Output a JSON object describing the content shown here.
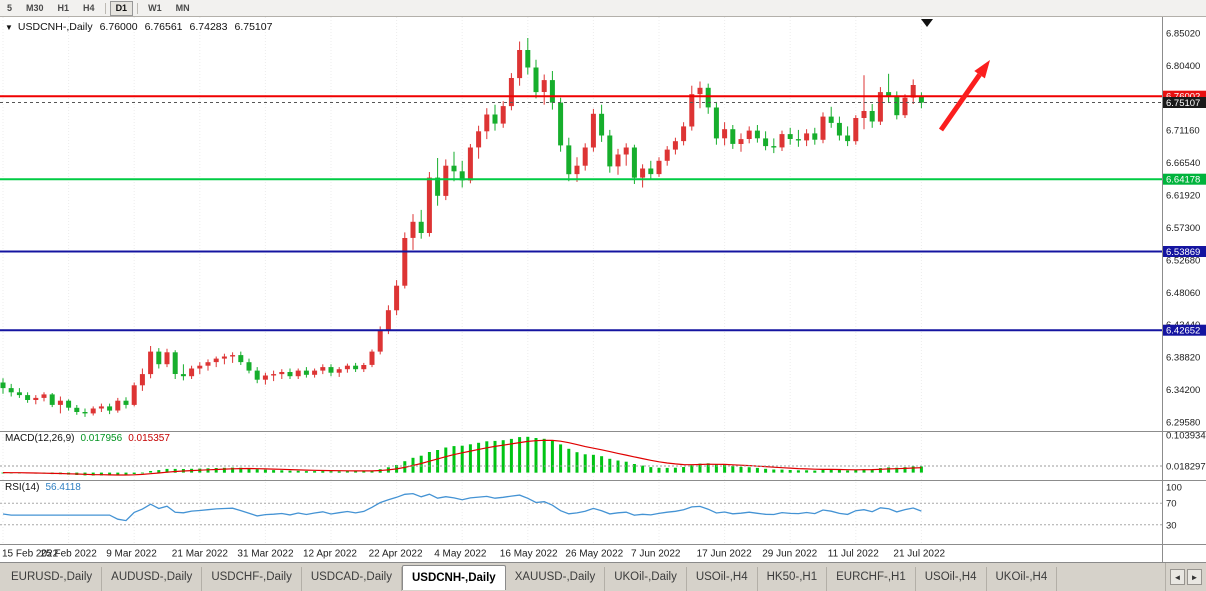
{
  "toolbar": {
    "timeframes": [
      "5",
      "M30",
      "H1",
      "H4",
      "D1",
      "W1",
      "MN"
    ],
    "active": "D1",
    "separators_after": [
      "H4",
      "D1"
    ]
  },
  "chart": {
    "header": {
      "symbol": "USDCNH-,Daily",
      "open": "6.76000",
      "high": "6.76561",
      "low": "6.74283",
      "close": "6.75107"
    },
    "price_axis_labels": [
      "6.85020",
      "6.80400",
      "6.75780",
      "6.71160",
      "6.66540",
      "6.61920",
      "6.57300",
      "6.52680",
      "6.48060",
      "6.43440",
      "6.38820",
      "6.34200",
      "6.29580"
    ],
    "badges": [
      {
        "value": "6.76002",
        "price": 6.76002,
        "color": "#e81010",
        "line_color": "#f00000",
        "line_width": 2,
        "dashed": false
      },
      {
        "value": "6.75107",
        "price": 6.75107,
        "color": "#1a1a1a",
        "line_color": "#555555",
        "line_width": 1,
        "dashed": true
      },
      {
        "value": "6.64178",
        "price": 6.64178,
        "color": "#00b33c",
        "line_color": "#00cc44",
        "line_width": 2,
        "dashed": false
      },
      {
        "value": "6.53869",
        "price": 6.53869,
        "color": "#1414a0",
        "line_color": "#1414a0",
        "line_width": 2,
        "dashed": false
      },
      {
        "value": "6.42652",
        "price": 6.42652,
        "color": "#1414a0",
        "line_color": "#1414a0",
        "line_width": 2,
        "dashed": false
      }
    ],
    "dates": [
      "15 Feb 2022",
      "25 Feb 2022",
      "9 Mar 2022",
      "21 Mar 2022",
      "31 Mar 2022",
      "12 Apr 2022",
      "22 Apr 2022",
      "4 May 2022",
      "16 May 2022",
      "26 May 2022",
      "7 Jun 2022",
      "17 Jun 2022",
      "29 Jun 2022",
      "11 Jul 2022",
      "21 Jul 2022"
    ],
    "macd": {
      "label": "MACD(12,26,9)",
      "value1": "0.017956",
      "value2": "0.015357",
      "axis_top": "0.103934",
      "axis_bottom": "0.018297",
      "fast": 12,
      "slow": 26,
      "signal": 9
    },
    "rsi": {
      "label": "RSI(14)",
      "value": "56.4118",
      "axis": [
        "100",
        "70",
        "30"
      ],
      "levels": [
        70,
        30
      ],
      "period": 14
    }
  },
  "colors": {
    "bull": "#dd3434",
    "bear": "#16ae2c",
    "macd_hist": "#00c414",
    "macd_signal": "#e00000",
    "rsi_line": "#4493d4",
    "arrow": "#fb1e1e",
    "marker": "#111111"
  },
  "chart_data": {
    "type": "candlestick",
    "symbol": "USDCNH",
    "timeframe": "Daily",
    "ylim": [
      6.2843,
      6.8687
    ],
    "date_tick_indices": [
      0,
      8,
      16,
      24,
      32,
      40,
      48,
      56,
      64,
      72,
      80,
      88,
      96,
      104,
      112
    ],
    "annotations": [
      {
        "type": "arrow-up-right",
        "color": "#fb1e1e",
        "meaning": "bullish continuation annotation"
      },
      {
        "type": "triangle-down-marker",
        "color": "#111111"
      }
    ],
    "candles": [
      [
        6.352,
        6.358,
        6.336,
        6.344
      ],
      [
        6.344,
        6.35,
        6.332,
        6.338
      ],
      [
        6.338,
        6.344,
        6.33,
        6.334
      ],
      [
        6.334,
        6.338,
        6.323,
        6.327
      ],
      [
        6.327,
        6.334,
        6.321,
        6.33
      ],
      [
        6.33,
        6.338,
        6.325,
        6.335
      ],
      [
        6.335,
        6.337,
        6.317,
        6.32
      ],
      [
        6.32,
        6.332,
        6.308,
        6.326
      ],
      [
        6.326,
        6.328,
        6.312,
        6.316
      ],
      [
        6.316,
        6.32,
        6.306,
        6.31
      ],
      [
        6.31,
        6.315,
        6.303,
        6.308
      ],
      [
        6.308,
        6.318,
        6.305,
        6.315
      ],
      [
        6.315,
        6.322,
        6.31,
        6.318
      ],
      [
        6.318,
        6.322,
        6.307,
        6.312
      ],
      [
        6.312,
        6.33,
        6.309,
        6.326
      ],
      [
        6.326,
        6.331,
        6.315,
        6.32
      ],
      [
        6.32,
        6.352,
        6.318,
        6.348
      ],
      [
        6.348,
        6.372,
        6.34,
        6.364
      ],
      [
        6.364,
        6.404,
        6.358,
        6.396
      ],
      [
        6.396,
        6.401,
        6.372,
        6.378
      ],
      [
        6.378,
        6.4,
        6.374,
        6.395
      ],
      [
        6.395,
        6.398,
        6.357,
        6.364
      ],
      [
        6.364,
        6.378,
        6.355,
        6.361
      ],
      [
        6.361,
        6.376,
        6.357,
        6.372
      ],
      [
        6.372,
        6.381,
        6.364,
        6.376
      ],
      [
        6.376,
        6.385,
        6.369,
        6.381
      ],
      [
        6.381,
        6.389,
        6.374,
        6.386
      ],
      [
        6.386,
        6.393,
        6.378,
        6.389
      ],
      [
        6.389,
        6.395,
        6.38,
        6.391
      ],
      [
        6.391,
        6.396,
        6.377,
        6.381
      ],
      [
        6.381,
        6.386,
        6.365,
        6.369
      ],
      [
        6.369,
        6.374,
        6.351,
        6.356
      ],
      [
        6.356,
        6.366,
        6.349,
        6.362
      ],
      [
        6.362,
        6.369,
        6.354,
        6.364
      ],
      [
        6.364,
        6.371,
        6.357,
        6.367
      ],
      [
        6.367,
        6.372,
        6.357,
        6.361
      ],
      [
        6.361,
        6.372,
        6.357,
        6.369
      ],
      [
        6.369,
        6.374,
        6.359,
        6.363
      ],
      [
        6.363,
        6.372,
        6.359,
        6.369
      ],
      [
        6.369,
        6.378,
        6.364,
        6.374
      ],
      [
        6.374,
        6.378,
        6.361,
        6.366
      ],
      [
        6.366,
        6.374,
        6.36,
        6.371
      ],
      [
        6.371,
        6.379,
        6.366,
        6.376
      ],
      [
        6.376,
        6.38,
        6.367,
        6.371
      ],
      [
        6.371,
        6.38,
        6.367,
        6.377
      ],
      [
        6.377,
        6.399,
        6.374,
        6.396
      ],
      [
        6.396,
        6.432,
        6.392,
        6.427
      ],
      [
        6.427,
        6.462,
        6.421,
        6.455
      ],
      [
        6.455,
        6.498,
        6.448,
        6.49
      ],
      [
        6.49,
        6.566,
        6.486,
        6.558
      ],
      [
        6.558,
        6.592,
        6.541,
        6.581
      ],
      [
        6.581,
        6.598,
        6.557,
        6.565
      ],
      [
        6.565,
        6.652,
        6.56,
        6.644
      ],
      [
        6.644,
        6.672,
        6.604,
        6.618
      ],
      [
        6.618,
        6.67,
        6.612,
        6.661
      ],
      [
        6.661,
        6.681,
        6.639,
        6.653
      ],
      [
        6.653,
        6.668,
        6.63,
        6.64
      ],
      [
        6.64,
        6.692,
        6.636,
        6.687
      ],
      [
        6.687,
        6.718,
        6.671,
        6.71
      ],
      [
        6.71,
        6.743,
        6.699,
        6.734
      ],
      [
        6.734,
        6.748,
        6.711,
        6.721
      ],
      [
        6.721,
        6.753,
        6.715,
        6.746
      ],
      [
        6.746,
        6.793,
        6.74,
        6.786
      ],
      [
        6.786,
        6.838,
        6.775,
        6.826
      ],
      [
        6.826,
        6.843,
        6.791,
        6.801
      ],
      [
        6.801,
        6.812,
        6.757,
        6.766
      ],
      [
        6.766,
        6.791,
        6.748,
        6.783
      ],
      [
        6.783,
        6.796,
        6.741,
        6.751
      ],
      [
        6.751,
        6.758,
        6.681,
        6.69
      ],
      [
        6.69,
        6.701,
        6.639,
        6.649
      ],
      [
        6.649,
        6.673,
        6.638,
        6.661
      ],
      [
        6.661,
        6.693,
        6.654,
        6.687
      ],
      [
        6.687,
        6.742,
        6.681,
        6.735
      ],
      [
        6.735,
        6.748,
        6.695,
        6.704
      ],
      [
        6.704,
        6.712,
        6.651,
        6.66
      ],
      [
        6.66,
        6.685,
        6.648,
        6.677
      ],
      [
        6.677,
        6.693,
        6.661,
        6.687
      ],
      [
        6.687,
        6.691,
        6.635,
        6.644
      ],
      [
        6.644,
        6.663,
        6.63,
        6.657
      ],
      [
        6.657,
        6.668,
        6.641,
        6.649
      ],
      [
        6.649,
        6.673,
        6.645,
        6.668
      ],
      [
        6.668,
        6.689,
        6.661,
        6.684
      ],
      [
        6.684,
        6.701,
        6.677,
        6.696
      ],
      [
        6.696,
        6.723,
        6.69,
        6.717
      ],
      [
        6.717,
        6.775,
        6.711,
        6.763
      ],
      [
        6.763,
        6.781,
        6.743,
        6.772
      ],
      [
        6.772,
        6.778,
        6.735,
        6.744
      ],
      [
        6.744,
        6.752,
        6.691,
        6.7
      ],
      [
        6.7,
        6.723,
        6.69,
        6.713
      ],
      [
        6.713,
        6.719,
        6.685,
        6.692
      ],
      [
        6.692,
        6.707,
        6.681,
        6.699
      ],
      [
        6.699,
        6.717,
        6.693,
        6.711
      ],
      [
        6.711,
        6.719,
        6.694,
        6.7
      ],
      [
        6.7,
        6.71,
        6.683,
        6.689
      ],
      [
        6.689,
        6.7,
        6.679,
        6.687
      ],
      [
        6.687,
        6.711,
        6.682,
        6.706
      ],
      [
        6.706,
        6.715,
        6.691,
        6.699
      ],
      [
        6.699,
        6.712,
        6.688,
        6.697
      ],
      [
        6.697,
        6.713,
        6.689,
        6.707
      ],
      [
        6.707,
        6.715,
        6.691,
        6.698
      ],
      [
        6.698,
        6.737,
        6.693,
        6.731
      ],
      [
        6.731,
        6.745,
        6.715,
        6.722
      ],
      [
        6.722,
        6.731,
        6.697,
        6.704
      ],
      [
        6.704,
        6.717,
        6.689,
        6.696
      ],
      [
        6.696,
        6.733,
        6.691,
        6.729
      ],
      [
        6.729,
        6.79,
        6.713,
        6.739
      ],
      [
        6.739,
        6.749,
        6.715,
        6.724
      ],
      [
        6.724,
        6.773,
        6.719,
        6.766
      ],
      [
        6.766,
        6.792,
        6.751,
        6.759
      ],
      [
        6.759,
        6.767,
        6.727,
        6.733
      ],
      [
        6.733,
        6.763,
        6.729,
        6.758
      ],
      [
        6.758,
        6.784,
        6.749,
        6.776
      ],
      [
        6.76,
        6.76561,
        6.74283,
        6.75107
      ]
    ]
  },
  "bottom_tabs": {
    "items": [
      "EURUSD-,Daily",
      "AUDUSD-,Daily",
      "USDCHF-,Daily",
      "USDCAD-,Daily",
      "USDCNH-,Daily",
      "XAUUSD-,Daily",
      "UKOil-,Daily",
      "USOil-,H4",
      "HK50-,H1",
      "EURCHF-,H1",
      "USOil-,H4",
      "UKOil-,H4"
    ],
    "active_index": 4,
    "scroll_left": "◄",
    "scroll_right": "►"
  }
}
